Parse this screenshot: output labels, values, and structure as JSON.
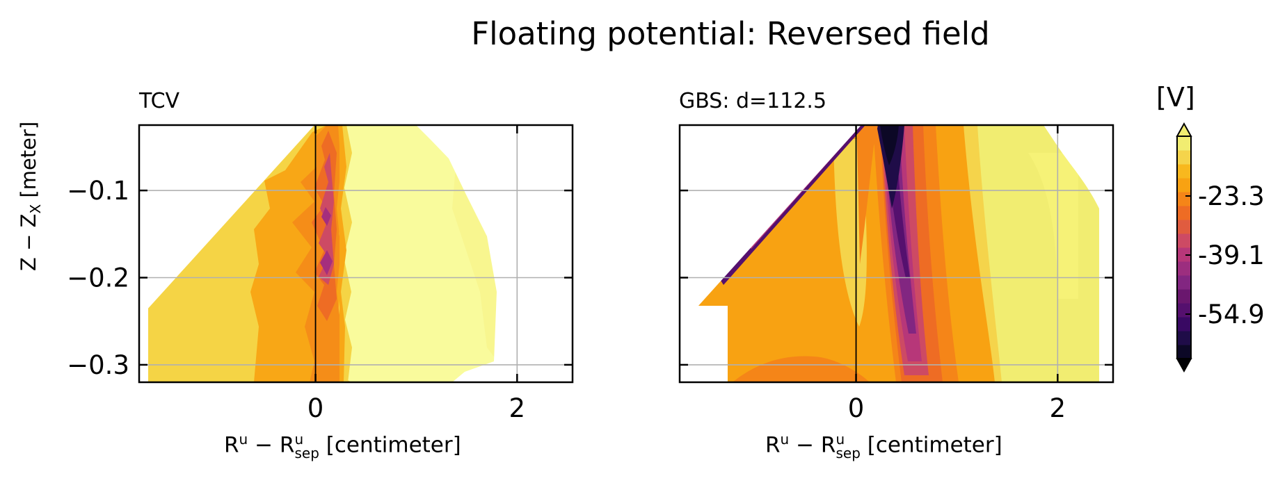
{
  "figure": {
    "title": "Floating potential: Reversed field",
    "ylabel": "Z − Z",
    "ylabel_sub": "X",
    "ylabel_unit": " [meter]",
    "xlabel_parts": [
      "R",
      "u",
      " − R",
      "u",
      "sep",
      " [centimeter]"
    ]
  },
  "chart_data": [
    {
      "type": "heatmap",
      "title": "TCV",
      "xlim": [
        -1.75,
        2.55
      ],
      "ylim": [
        -0.32,
        -0.025
      ],
      "xticks": [
        0,
        2
      ],
      "yticks": [
        -0.1,
        -0.2,
        -0.3
      ],
      "ytick_labels": [
        "−0.1",
        "−0.2",
        "−0.3"
      ],
      "xlabel": "R^u − R^u_sep [centimeter]",
      "ylabel": "Z − Z_X [meter]",
      "grid": true,
      "separatrix_x": 0
    },
    {
      "type": "heatmap",
      "title": "GBS: d=112.5",
      "xlim": [
        -1.75,
        2.55
      ],
      "ylim": [
        -0.32,
        -0.025
      ],
      "xticks": [
        0,
        2
      ],
      "yticks": [
        -0.1,
        -0.2,
        -0.3
      ],
      "xlabel": "R^u − R^u_sep [centimeter]",
      "grid": true,
      "separatrix_x": 0
    }
  ],
  "colorbar": {
    "label": "[V]",
    "colormap": "inferno",
    "extend": "both",
    "tick_labels": [
      "-23.3",
      "-39.1",
      "-54.9"
    ],
    "colors": [
      "#0c0826",
      "#1f0c48",
      "#390963",
      "#55106e",
      "#6a176e",
      "#822681",
      "#9c2e7f",
      "#b73779",
      "#cd4a64",
      "#e05c3f",
      "#ee6c24",
      "#f58518",
      "#f8a212",
      "#f8b81e",
      "#f5d44b",
      "#f1ed71"
    ]
  }
}
